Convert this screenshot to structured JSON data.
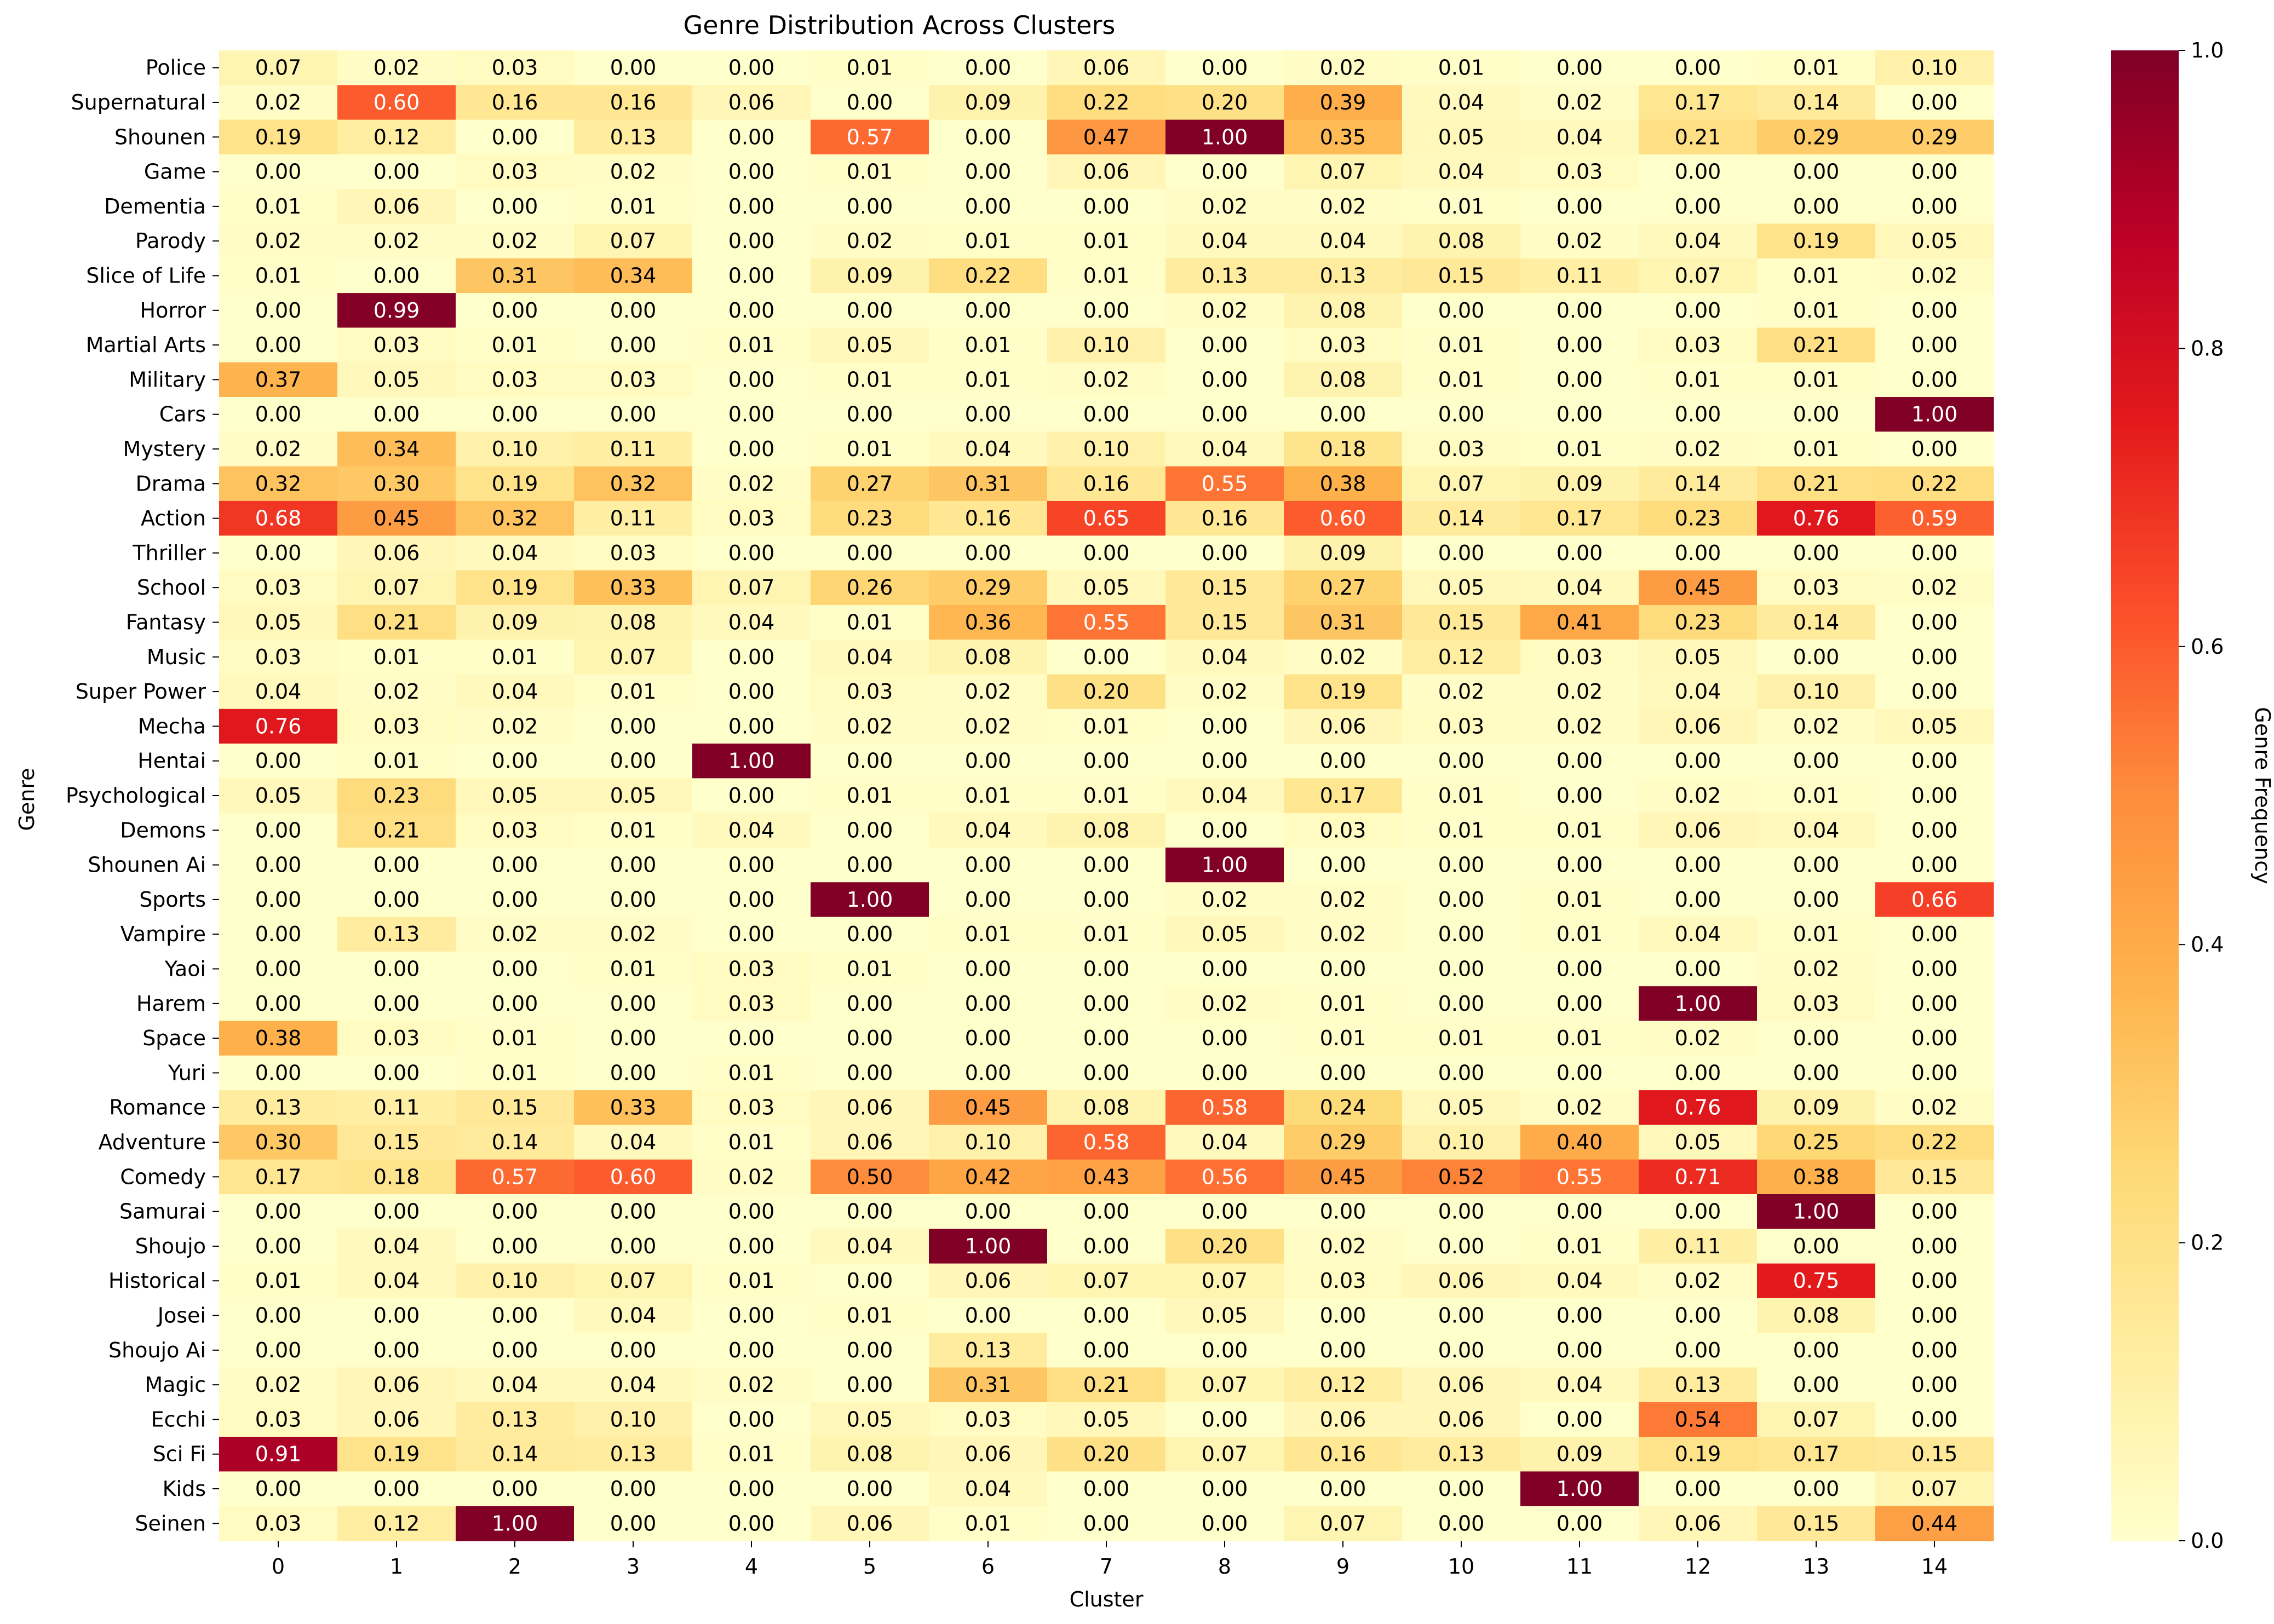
{
  "chart_data": {
    "type": "heatmap",
    "title": "Genre Distribution Across Clusters",
    "xlabel": "Cluster",
    "ylabel": "Genre",
    "colorbar_label": "Genre Frequency",
    "colormap": "YlOrRd",
    "vmin": 0.0,
    "vmax": 1.0,
    "colorbar_ticks": [
      "0.0",
      "0.2",
      "0.4",
      "0.6",
      "0.8",
      "1.0"
    ],
    "x_categories": [
      "0",
      "1",
      "2",
      "3",
      "4",
      "5",
      "6",
      "7",
      "8",
      "9",
      "10",
      "11",
      "12",
      "13",
      "14"
    ],
    "y_categories": [
      "Police",
      "Supernatural",
      "Shounen",
      "Game",
      "Dementia",
      "Parody",
      "Slice of Life",
      "Horror",
      "Martial Arts",
      "Military",
      "Cars",
      "Mystery",
      "Drama",
      "Action",
      "Thriller",
      "School",
      "Fantasy",
      "Music",
      "Super Power",
      "Mecha",
      "Hentai",
      "Psychological",
      "Demons",
      "Shounen Ai",
      "Sports",
      "Vampire",
      "Yaoi",
      "Harem",
      "Space",
      "Yuri",
      "Romance",
      "Adventure",
      "Comedy",
      "Samurai",
      "Shoujo",
      "Historical",
      "Josei",
      "Shoujo Ai",
      "Magic",
      "Ecchi",
      "Sci Fi",
      "Kids",
      "Seinen"
    ],
    "values": [
      [
        0.07,
        0.02,
        0.03,
        0.0,
        0.0,
        0.01,
        0.0,
        0.06,
        0.0,
        0.02,
        0.01,
        0.0,
        0.0,
        0.01,
        0.1
      ],
      [
        0.02,
        0.6,
        0.16,
        0.16,
        0.06,
        0.0,
        0.09,
        0.22,
        0.2,
        0.39,
        0.04,
        0.02,
        0.17,
        0.14,
        0.0
      ],
      [
        0.19,
        0.12,
        0.0,
        0.13,
        0.0,
        0.57,
        0.0,
        0.47,
        1.0,
        0.35,
        0.05,
        0.04,
        0.21,
        0.29,
        0.29
      ],
      [
        0.0,
        0.0,
        0.03,
        0.02,
        0.0,
        0.01,
        0.0,
        0.06,
        0.0,
        0.07,
        0.04,
        0.03,
        0.0,
        0.0,
        0.0
      ],
      [
        0.01,
        0.06,
        0.0,
        0.01,
        0.0,
        0.0,
        0.0,
        0.0,
        0.02,
        0.02,
        0.01,
        0.0,
        0.0,
        0.0,
        0.0
      ],
      [
        0.02,
        0.02,
        0.02,
        0.07,
        0.0,
        0.02,
        0.01,
        0.01,
        0.04,
        0.04,
        0.08,
        0.02,
        0.04,
        0.19,
        0.05
      ],
      [
        0.01,
        0.0,
        0.31,
        0.34,
        0.0,
        0.09,
        0.22,
        0.01,
        0.13,
        0.13,
        0.15,
        0.11,
        0.07,
        0.01,
        0.02
      ],
      [
        0.0,
        0.99,
        0.0,
        0.0,
        0.0,
        0.0,
        0.0,
        0.0,
        0.02,
        0.08,
        0.0,
        0.0,
        0.0,
        0.01,
        0.0
      ],
      [
        0.0,
        0.03,
        0.01,
        0.0,
        0.01,
        0.05,
        0.01,
        0.1,
        0.0,
        0.03,
        0.01,
        0.0,
        0.03,
        0.21,
        0.0
      ],
      [
        0.37,
        0.05,
        0.03,
        0.03,
        0.0,
        0.01,
        0.01,
        0.02,
        0.0,
        0.08,
        0.01,
        0.0,
        0.01,
        0.01,
        0.0
      ],
      [
        0.0,
        0.0,
        0.0,
        0.0,
        0.0,
        0.0,
        0.0,
        0.0,
        0.0,
        0.0,
        0.0,
        0.0,
        0.0,
        0.0,
        1.0
      ],
      [
        0.02,
        0.34,
        0.1,
        0.11,
        0.0,
        0.01,
        0.04,
        0.1,
        0.04,
        0.18,
        0.03,
        0.01,
        0.02,
        0.01,
        0.0
      ],
      [
        0.32,
        0.3,
        0.19,
        0.32,
        0.02,
        0.27,
        0.31,
        0.16,
        0.55,
        0.38,
        0.07,
        0.09,
        0.14,
        0.21,
        0.22
      ],
      [
        0.68,
        0.45,
        0.32,
        0.11,
        0.03,
        0.23,
        0.16,
        0.65,
        0.16,
        0.6,
        0.14,
        0.17,
        0.23,
        0.76,
        0.59
      ],
      [
        0.0,
        0.06,
        0.04,
        0.03,
        0.0,
        0.0,
        0.0,
        0.0,
        0.0,
        0.09,
        0.0,
        0.0,
        0.0,
        0.0,
        0.0
      ],
      [
        0.03,
        0.07,
        0.19,
        0.33,
        0.07,
        0.26,
        0.29,
        0.05,
        0.15,
        0.27,
        0.05,
        0.04,
        0.45,
        0.03,
        0.02
      ],
      [
        0.05,
        0.21,
        0.09,
        0.08,
        0.04,
        0.01,
        0.36,
        0.55,
        0.15,
        0.31,
        0.15,
        0.41,
        0.23,
        0.14,
        0.0
      ],
      [
        0.03,
        0.01,
        0.01,
        0.07,
        0.0,
        0.04,
        0.08,
        0.0,
        0.04,
        0.02,
        0.12,
        0.03,
        0.05,
        0.0,
        0.0
      ],
      [
        0.04,
        0.02,
        0.04,
        0.01,
        0.0,
        0.03,
        0.02,
        0.2,
        0.02,
        0.19,
        0.02,
        0.02,
        0.04,
        0.1,
        0.0
      ],
      [
        0.76,
        0.03,
        0.02,
        0.0,
        0.0,
        0.02,
        0.02,
        0.01,
        0.0,
        0.06,
        0.03,
        0.02,
        0.06,
        0.02,
        0.05
      ],
      [
        0.0,
        0.01,
        0.0,
        0.0,
        1.0,
        0.0,
        0.0,
        0.0,
        0.0,
        0.0,
        0.0,
        0.0,
        0.0,
        0.0,
        0.0
      ],
      [
        0.05,
        0.23,
        0.05,
        0.05,
        0.0,
        0.01,
        0.01,
        0.01,
        0.04,
        0.17,
        0.01,
        0.0,
        0.02,
        0.01,
        0.0
      ],
      [
        0.0,
        0.21,
        0.03,
        0.01,
        0.04,
        0.0,
        0.04,
        0.08,
        0.0,
        0.03,
        0.01,
        0.01,
        0.06,
        0.04,
        0.0
      ],
      [
        0.0,
        0.0,
        0.0,
        0.0,
        0.0,
        0.0,
        0.0,
        0.0,
        1.0,
        0.0,
        0.0,
        0.0,
        0.0,
        0.0,
        0.0
      ],
      [
        0.0,
        0.0,
        0.0,
        0.0,
        0.0,
        1.0,
        0.0,
        0.0,
        0.02,
        0.02,
        0.0,
        0.01,
        0.0,
        0.0,
        0.66
      ],
      [
        0.0,
        0.13,
        0.02,
        0.02,
        0.0,
        0.0,
        0.01,
        0.01,
        0.05,
        0.02,
        0.0,
        0.01,
        0.04,
        0.01,
        0.0
      ],
      [
        0.0,
        0.0,
        0.0,
        0.01,
        0.03,
        0.01,
        0.0,
        0.0,
        0.0,
        0.0,
        0.0,
        0.0,
        0.0,
        0.02,
        0.0
      ],
      [
        0.0,
        0.0,
        0.0,
        0.0,
        0.03,
        0.0,
        0.0,
        0.0,
        0.02,
        0.01,
        0.0,
        0.0,
        1.0,
        0.03,
        0.0
      ],
      [
        0.38,
        0.03,
        0.01,
        0.0,
        0.0,
        0.0,
        0.0,
        0.0,
        0.0,
        0.01,
        0.01,
        0.01,
        0.02,
        0.0,
        0.0
      ],
      [
        0.0,
        0.0,
        0.01,
        0.0,
        0.01,
        0.0,
        0.0,
        0.0,
        0.0,
        0.0,
        0.0,
        0.0,
        0.0,
        0.0,
        0.0
      ],
      [
        0.13,
        0.11,
        0.15,
        0.33,
        0.03,
        0.06,
        0.45,
        0.08,
        0.58,
        0.24,
        0.05,
        0.02,
        0.76,
        0.09,
        0.02
      ],
      [
        0.3,
        0.15,
        0.14,
        0.04,
        0.01,
        0.06,
        0.1,
        0.58,
        0.04,
        0.29,
        0.1,
        0.4,
        0.05,
        0.25,
        0.22
      ],
      [
        0.17,
        0.18,
        0.57,
        0.6,
        0.02,
        0.5,
        0.42,
        0.43,
        0.56,
        0.45,
        0.52,
        0.55,
        0.71,
        0.38,
        0.15
      ],
      [
        0.0,
        0.0,
        0.0,
        0.0,
        0.0,
        0.0,
        0.0,
        0.0,
        0.0,
        0.0,
        0.0,
        0.0,
        0.0,
        1.0,
        0.0
      ],
      [
        0.0,
        0.04,
        0.0,
        0.0,
        0.0,
        0.04,
        1.0,
        0.0,
        0.2,
        0.02,
        0.0,
        0.01,
        0.11,
        0.0,
        0.0
      ],
      [
        0.01,
        0.04,
        0.1,
        0.07,
        0.01,
        0.0,
        0.06,
        0.07,
        0.07,
        0.03,
        0.06,
        0.04,
        0.02,
        0.75,
        0.0
      ],
      [
        0.0,
        0.0,
        0.0,
        0.04,
        0.0,
        0.01,
        0.0,
        0.0,
        0.05,
        0.0,
        0.0,
        0.0,
        0.0,
        0.08,
        0.0
      ],
      [
        0.0,
        0.0,
        0.0,
        0.0,
        0.0,
        0.0,
        0.13,
        0.0,
        0.0,
        0.0,
        0.0,
        0.0,
        0.0,
        0.0,
        0.0
      ],
      [
        0.02,
        0.06,
        0.04,
        0.04,
        0.02,
        0.0,
        0.31,
        0.21,
        0.07,
        0.12,
        0.06,
        0.04,
        0.13,
        0.0,
        0.0
      ],
      [
        0.03,
        0.06,
        0.13,
        0.1,
        0.0,
        0.05,
        0.03,
        0.05,
        0.0,
        0.06,
        0.06,
        0.0,
        0.54,
        0.07,
        0.0
      ],
      [
        0.91,
        0.19,
        0.14,
        0.13,
        0.01,
        0.08,
        0.06,
        0.2,
        0.07,
        0.16,
        0.13,
        0.09,
        0.19,
        0.17,
        0.15
      ],
      [
        0.0,
        0.0,
        0.0,
        0.0,
        0.0,
        0.0,
        0.04,
        0.0,
        0.0,
        0.0,
        0.0,
        1.0,
        0.0,
        0.0,
        0.07
      ],
      [
        0.03,
        0.12,
        1.0,
        0.0,
        0.0,
        0.06,
        0.01,
        0.0,
        0.0,
        0.07,
        0.0,
        0.0,
        0.06,
        0.15,
        0.44
      ]
    ]
  }
}
